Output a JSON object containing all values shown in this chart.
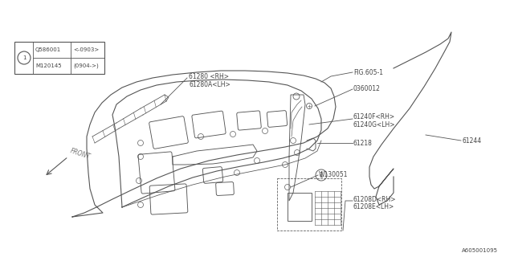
{
  "bg_color": "#ffffff",
  "line_color": "#555555",
  "text_color": "#444444",
  "diagram_id": "A605001095",
  "ref_box": {
    "row1_col1": "Q586001",
    "row1_col2": "<-0903>",
    "row2_col1": "M120145",
    "row2_col2": "(0904->)"
  }
}
